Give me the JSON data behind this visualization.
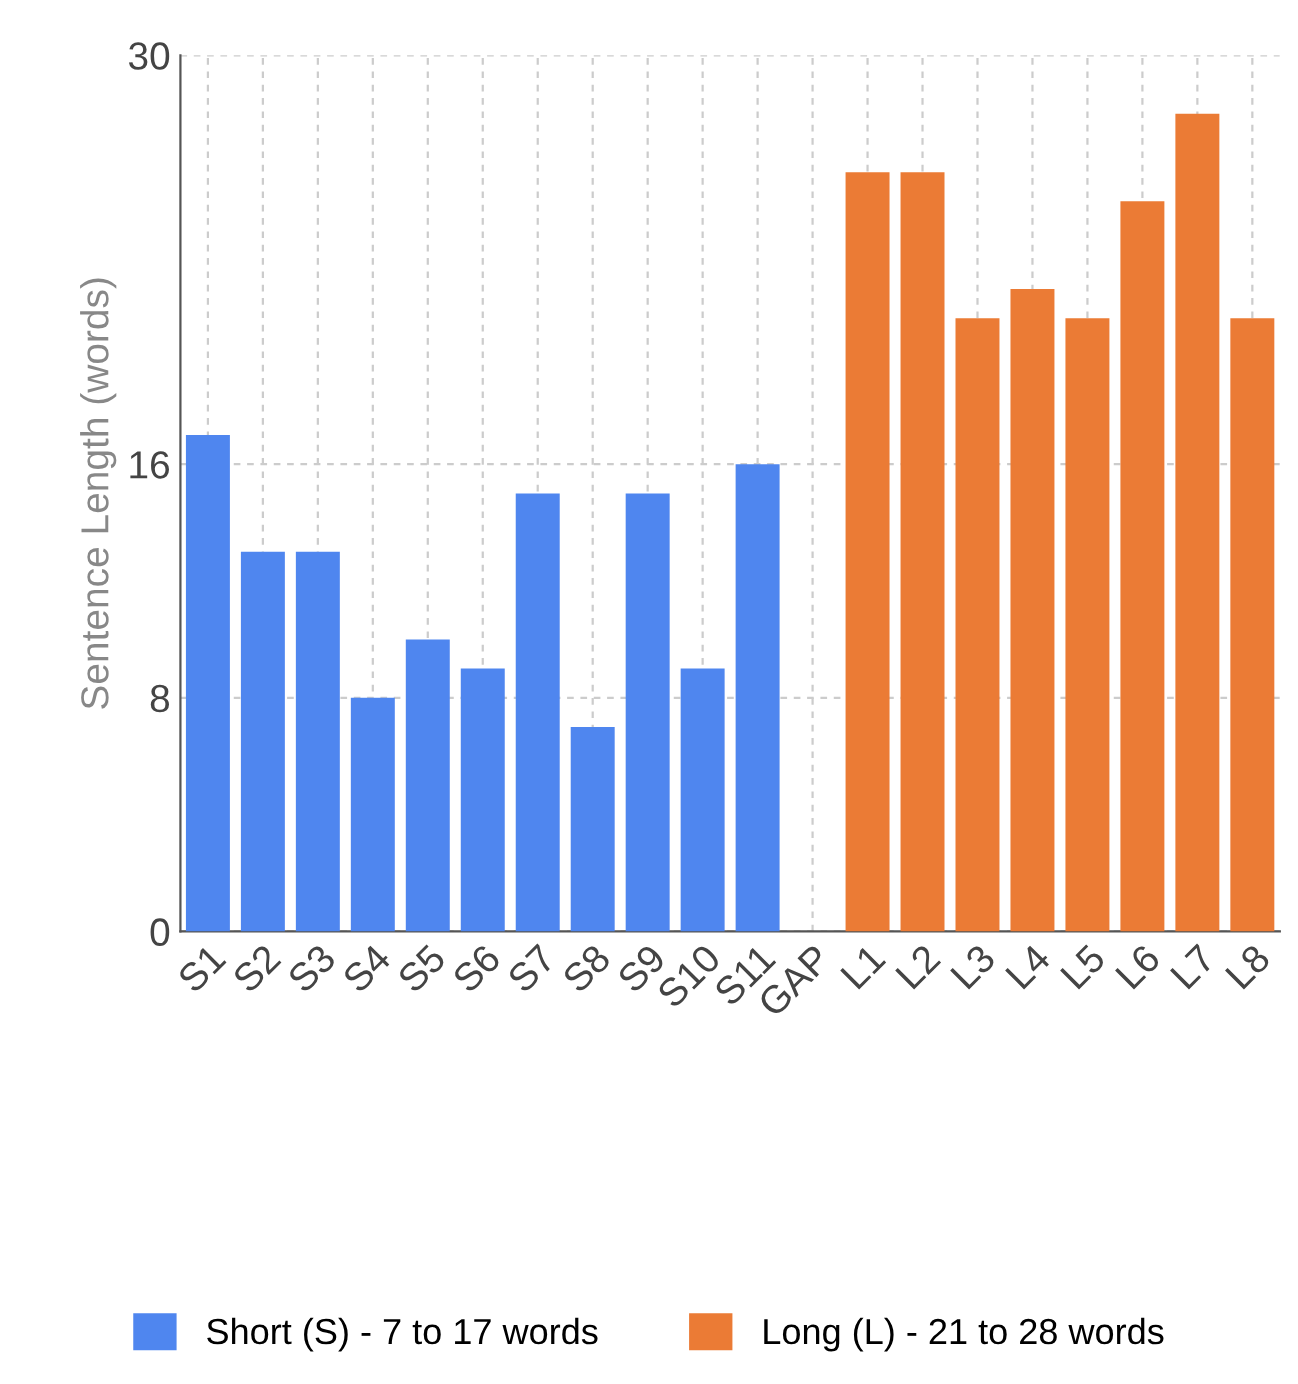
{
  "chart_data": {
    "type": "bar",
    "ylabel": "Sentence Length (words)",
    "categories": [
      "S1",
      "S2",
      "S3",
      "S4",
      "S5",
      "S6",
      "S7",
      "S8",
      "S9",
      "S10",
      "S11",
      "GAP",
      "L1",
      "L2",
      "L3",
      "L4",
      "L5",
      "L6",
      "L7",
      "L8"
    ],
    "series": [
      {
        "name": "Short (S) - 7 to 17 words",
        "color": "#4f86ef",
        "values": [
          17,
          13,
          13,
          8,
          10,
          9,
          15,
          7,
          15,
          9,
          16,
          null,
          null,
          null,
          null,
          null,
          null,
          null,
          null,
          null
        ]
      },
      {
        "name": "Long (L) - 21 to 28 words",
        "color": "#eb7b35",
        "values": [
          null,
          null,
          null,
          null,
          null,
          null,
          null,
          null,
          null,
          null,
          null,
          null,
          26,
          26,
          21,
          22,
          21,
          25,
          28,
          21
        ]
      }
    ],
    "ylim": [
      0,
      30
    ],
    "yticks": [
      0,
      8,
      16,
      30
    ],
    "grid": true,
    "legend": "bottom"
  }
}
